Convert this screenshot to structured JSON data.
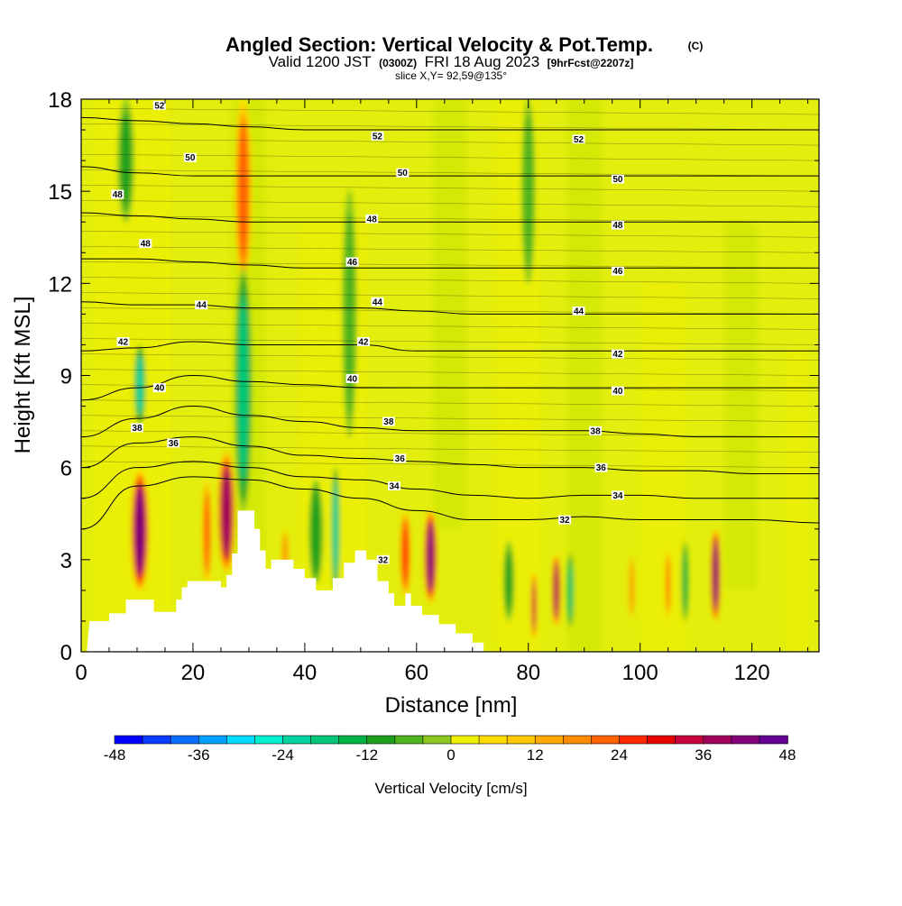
{
  "title": {
    "main": "Angled Section: Vertical Velocity & Pot.Temp.",
    "unit_tag": "(C)",
    "valid_prefix": "Valid 1200 JST",
    "valid_utc": "(0300Z)",
    "valid_date": "FRI 18 Aug 2023",
    "forecast_tag": "[9hrFcst@2207z]",
    "slice": "slice X,Y= 92,59@135°"
  },
  "chart_data": {
    "type": "heatmap",
    "title": "Angled Section: Vertical Velocity & Pot.Temp.",
    "xlabel": "Distance [nm]",
    "ylabel": "Height [Kft MSL]",
    "xlim": [
      0,
      132
    ],
    "ylim": [
      0,
      18
    ],
    "x_ticks": [
      "0",
      "20",
      "40",
      "60",
      "80",
      "100",
      "120"
    ],
    "y_ticks": [
      "0",
      "3",
      "6",
      "9",
      "12",
      "15",
      "18"
    ],
    "colorbar": {
      "label": "Vertical Velocity [cm/s]",
      "tick_labels": [
        "-48",
        "-36",
        "-24",
        "-12",
        "0",
        "12",
        "24",
        "36",
        "48"
      ],
      "levels": [
        -48,
        -44,
        -40,
        -36,
        -32,
        -28,
        -24,
        -20,
        -16,
        -12,
        -8,
        -4,
        0,
        4,
        8,
        12,
        16,
        20,
        24,
        28,
        32,
        36,
        40,
        44,
        48
      ],
      "colors": [
        "#0000ff",
        "#0a3cff",
        "#0a6eff",
        "#00a0ff",
        "#00dcff",
        "#00f0d2",
        "#00d2a0",
        "#00c878",
        "#00b446",
        "#1ea01e",
        "#50b41e",
        "#8cc81e",
        "#c8e600",
        "#f0f000",
        "#ffdc00",
        "#ffc800",
        "#ffaa00",
        "#ff8c00",
        "#ff6400",
        "#ff2800",
        "#e60000",
        "#c8003c",
        "#a0005a",
        "#820078",
        "#640096"
      ]
    },
    "pot_temp_contours": [
      {
        "value": 32,
        "label": "32",
        "heights": [
          [
            0,
            4.0
          ],
          [
            10,
            5.4
          ],
          [
            20,
            5.7
          ],
          [
            30,
            5.6
          ],
          [
            40,
            5.3
          ],
          [
            50,
            5.0
          ],
          [
            60,
            4.6
          ],
          [
            70,
            4.3
          ],
          [
            80,
            4.3
          ],
          [
            90,
            4.4
          ],
          [
            100,
            4.3
          ],
          [
            110,
            4.3
          ],
          [
            120,
            4.3
          ],
          [
            132,
            4.2
          ]
        ]
      },
      {
        "value": 34,
        "label": "34",
        "heights": [
          [
            0,
            5.0
          ],
          [
            10,
            6.0
          ],
          [
            20,
            6.2
          ],
          [
            30,
            6.0
          ],
          [
            40,
            5.7
          ],
          [
            50,
            5.6
          ],
          [
            60,
            5.3
          ],
          [
            70,
            5.1
          ],
          [
            80,
            5.0
          ],
          [
            90,
            5.1
          ],
          [
            100,
            5.1
          ],
          [
            110,
            5.0
          ],
          [
            120,
            5.0
          ],
          [
            132,
            5.0
          ]
        ]
      },
      {
        "value": 36,
        "label": "36",
        "heights": [
          [
            0,
            6.0
          ],
          [
            10,
            6.8
          ],
          [
            20,
            7.0
          ],
          [
            30,
            6.7
          ],
          [
            40,
            6.4
          ],
          [
            50,
            6.3
          ],
          [
            60,
            6.2
          ],
          [
            70,
            6.1
          ],
          [
            80,
            6.0
          ],
          [
            90,
            6.0
          ],
          [
            100,
            5.9
          ],
          [
            110,
            5.9
          ],
          [
            120,
            5.8
          ],
          [
            132,
            5.8
          ]
        ]
      },
      {
        "value": 38,
        "label": "38",
        "heights": [
          [
            0,
            7.0
          ],
          [
            10,
            7.6
          ],
          [
            20,
            8.0
          ],
          [
            30,
            7.7
          ],
          [
            40,
            7.5
          ],
          [
            50,
            7.3
          ],
          [
            60,
            7.2
          ],
          [
            70,
            7.2
          ],
          [
            80,
            7.2
          ],
          [
            90,
            7.2
          ],
          [
            100,
            7.1
          ],
          [
            110,
            7.0
          ],
          [
            120,
            7.0
          ],
          [
            132,
            7.0
          ]
        ]
      },
      {
        "value": 40,
        "label": "40",
        "heights": [
          [
            0,
            8.2
          ],
          [
            10,
            8.6
          ],
          [
            20,
            9.0
          ],
          [
            30,
            8.8
          ],
          [
            40,
            8.7
          ],
          [
            50,
            8.6
          ],
          [
            60,
            8.6
          ],
          [
            70,
            8.6
          ],
          [
            80,
            8.6
          ],
          [
            90,
            8.6
          ],
          [
            100,
            8.6
          ],
          [
            110,
            8.6
          ],
          [
            120,
            8.6
          ],
          [
            132,
            8.6
          ]
        ]
      },
      {
        "value": 42,
        "label": "42",
        "heights": [
          [
            0,
            9.8
          ],
          [
            10,
            9.9
          ],
          [
            20,
            10.1
          ],
          [
            30,
            10.0
          ],
          [
            40,
            10.0
          ],
          [
            50,
            10.0
          ],
          [
            60,
            9.8
          ],
          [
            70,
            9.8
          ],
          [
            80,
            9.8
          ],
          [
            90,
            9.8
          ],
          [
            100,
            9.8
          ],
          [
            110,
            9.8
          ],
          [
            120,
            9.8
          ],
          [
            132,
            9.8
          ]
        ]
      },
      {
        "value": 44,
        "label": "44",
        "heights": [
          [
            0,
            11.4
          ],
          [
            10,
            11.3
          ],
          [
            20,
            11.3
          ],
          [
            30,
            11.2
          ],
          [
            40,
            11.2
          ],
          [
            50,
            11.2
          ],
          [
            60,
            11.1
          ],
          [
            70,
            11.0
          ],
          [
            80,
            11.0
          ],
          [
            90,
            11.0
          ],
          [
            100,
            11.0
          ],
          [
            110,
            11.0
          ],
          [
            120,
            11.0
          ],
          [
            132,
            11.0
          ]
        ]
      },
      {
        "value": 46,
        "label": "46",
        "heights": [
          [
            0,
            12.8
          ],
          [
            10,
            12.8
          ],
          [
            20,
            12.7
          ],
          [
            30,
            12.6
          ],
          [
            40,
            12.5
          ],
          [
            50,
            12.5
          ],
          [
            60,
            12.5
          ],
          [
            70,
            12.5
          ],
          [
            80,
            12.5
          ],
          [
            90,
            12.5
          ],
          [
            100,
            12.5
          ],
          [
            110,
            12.5
          ],
          [
            120,
            12.5
          ],
          [
            132,
            12.5
          ]
        ]
      },
      {
        "value": 48,
        "label": "48",
        "heights": [
          [
            0,
            14.3
          ],
          [
            10,
            14.2
          ],
          [
            20,
            14.1
          ],
          [
            30,
            14.0
          ],
          [
            40,
            14.0
          ],
          [
            50,
            14.0
          ],
          [
            60,
            14.0
          ],
          [
            70,
            14.0
          ],
          [
            80,
            14.0
          ],
          [
            90,
            14.0
          ],
          [
            100,
            14.0
          ],
          [
            110,
            14.0
          ],
          [
            120,
            14.0
          ],
          [
            132,
            14.0
          ]
        ]
      },
      {
        "value": 50,
        "label": "50",
        "heights": [
          [
            0,
            15.8
          ],
          [
            10,
            15.6
          ],
          [
            20,
            15.5
          ],
          [
            30,
            15.5
          ],
          [
            40,
            15.5
          ],
          [
            50,
            15.5
          ],
          [
            60,
            15.5
          ],
          [
            70,
            15.5
          ],
          [
            80,
            15.5
          ],
          [
            90,
            15.5
          ],
          [
            100,
            15.5
          ],
          [
            110,
            15.5
          ],
          [
            120,
            15.5
          ],
          [
            132,
            15.5
          ]
        ]
      },
      {
        "value": 52,
        "label": "52",
        "heights": [
          [
            0,
            17.4
          ],
          [
            10,
            17.3
          ],
          [
            20,
            17.2
          ],
          [
            30,
            17.1
          ],
          [
            40,
            17.0
          ],
          [
            50,
            17.0
          ],
          [
            60,
            17.0
          ],
          [
            70,
            17.0
          ],
          [
            80,
            17.0
          ],
          [
            90,
            17.0
          ],
          [
            100,
            17.0
          ],
          [
            110,
            17.0
          ],
          [
            120,
            17.0
          ],
          [
            132,
            17.0
          ]
        ]
      }
    ],
    "contour_labels": [
      {
        "text": "52",
        "x": 14,
        "y": 17.8
      },
      {
        "text": "52",
        "x": 53,
        "y": 16.8
      },
      {
        "text": "52",
        "x": 89,
        "y": 16.7
      },
      {
        "text": "50",
        "x": 19.5,
        "y": 16.1
      },
      {
        "text": "50",
        "x": 57.5,
        "y": 15.6
      },
      {
        "text": "50",
        "x": 96,
        "y": 15.4
      },
      {
        "text": "48",
        "x": 6.5,
        "y": 14.9
      },
      {
        "text": "48",
        "x": 52,
        "y": 14.1
      },
      {
        "text": "48",
        "x": 96,
        "y": 13.9
      },
      {
        "text": "48",
        "x": 11.5,
        "y": 13.3
      },
      {
        "text": "46",
        "x": 48.5,
        "y": 12.7
      },
      {
        "text": "46",
        "x": 96,
        "y": 12.4
      },
      {
        "text": "44",
        "x": 21.5,
        "y": 11.3
      },
      {
        "text": "44",
        "x": 53,
        "y": 11.4
      },
      {
        "text": "44",
        "x": 89,
        "y": 11.1
      },
      {
        "text": "42",
        "x": 7.5,
        "y": 10.1
      },
      {
        "text": "42",
        "x": 50.5,
        "y": 10.1
      },
      {
        "text": "42",
        "x": 96,
        "y": 9.7
      },
      {
        "text": "40",
        "x": 14,
        "y": 8.6
      },
      {
        "text": "40",
        "x": 48.5,
        "y": 8.9
      },
      {
        "text": "40",
        "x": 96,
        "y": 8.5
      },
      {
        "text": "38",
        "x": 10,
        "y": 7.3
      },
      {
        "text": "38",
        "x": 55,
        "y": 7.5
      },
      {
        "text": "38",
        "x": 92,
        "y": 7.2
      },
      {
        "text": "36",
        "x": 16.5,
        "y": 6.8
      },
      {
        "text": "36",
        "x": 57,
        "y": 6.3
      },
      {
        "text": "36",
        "x": 93,
        "y": 6.0
      },
      {
        "text": "34",
        "x": 56,
        "y": 5.4
      },
      {
        "text": "34",
        "x": 96,
        "y": 5.1
      },
      {
        "text": "32",
        "x": 86.5,
        "y": 4.3
      },
      {
        "text": "32",
        "x": 54,
        "y": 3.0
      }
    ],
    "terrain_kft": [
      [
        0,
        0.0
      ],
      [
        1,
        0.0
      ],
      [
        1.5,
        1.0
      ],
      [
        5,
        1.0
      ],
      [
        5,
        1.25
      ],
      [
        8,
        1.25
      ],
      [
        8,
        1.7
      ],
      [
        13,
        1.7
      ],
      [
        13,
        1.3
      ],
      [
        17,
        1.3
      ],
      [
        17,
        1.7
      ],
      [
        18,
        1.7
      ],
      [
        18,
        2.1
      ],
      [
        19,
        2.1
      ],
      [
        19,
        2.3
      ],
      [
        25,
        2.3
      ],
      [
        25,
        2.1
      ],
      [
        26,
        2.1
      ],
      [
        26,
        2.5
      ],
      [
        27,
        2.5
      ],
      [
        27,
        3.2
      ],
      [
        28,
        3.2
      ],
      [
        28,
        4.6
      ],
      [
        31,
        4.6
      ],
      [
        31,
        4.0
      ],
      [
        32,
        4.0
      ],
      [
        32,
        3.3
      ],
      [
        33,
        3.3
      ],
      [
        33,
        2.7
      ],
      [
        34,
        2.7
      ],
      [
        34,
        3.0
      ],
      [
        38,
        3.0
      ],
      [
        38,
        2.7
      ],
      [
        40,
        2.7
      ],
      [
        40,
        2.4
      ],
      [
        42,
        2.4
      ],
      [
        42,
        2.0
      ],
      [
        45,
        2.0
      ],
      [
        45,
        2.4
      ],
      [
        47,
        2.4
      ],
      [
        47,
        2.9
      ],
      [
        49,
        2.9
      ],
      [
        49,
        3.3
      ],
      [
        51,
        3.3
      ],
      [
        51,
        3.0
      ],
      [
        53,
        3.0
      ],
      [
        53,
        2.3
      ],
      [
        55,
        2.3
      ],
      [
        55,
        1.9
      ],
      [
        56,
        1.9
      ],
      [
        56,
        1.5
      ],
      [
        58,
        1.5
      ],
      [
        58,
        1.9
      ],
      [
        59,
        1.9
      ],
      [
        59,
        1.5
      ],
      [
        61,
        1.5
      ],
      [
        61,
        1.2
      ],
      [
        64,
        1.2
      ],
      [
        64,
        0.9
      ],
      [
        67,
        0.9
      ],
      [
        67,
        0.6
      ],
      [
        70,
        0.6
      ],
      [
        70,
        0.3
      ],
      [
        72,
        0.3
      ],
      [
        72,
        0.0
      ],
      [
        132,
        0.0
      ]
    ],
    "updrafts": [
      {
        "x": 10.5,
        "ybot": 2.0,
        "ytop": 5.9,
        "w": 3.2,
        "v": 44
      },
      {
        "x": 26.0,
        "ybot": 2.6,
        "ytop": 6.5,
        "w": 3.0,
        "v": 40
      },
      {
        "x": 22.5,
        "ybot": 2.2,
        "ytop": 5.6,
        "w": 1.6,
        "v": 24
      },
      {
        "x": 62.5,
        "ybot": 1.6,
        "ytop": 4.6,
        "w": 2.2,
        "v": 44
      },
      {
        "x": 58.0,
        "ybot": 1.8,
        "ytop": 4.6,
        "w": 1.8,
        "v": 28
      },
      {
        "x": 36.5,
        "ybot": 2.4,
        "ytop": 4.0,
        "w": 1.2,
        "v": 20
      },
      {
        "x": 85.0,
        "ybot": 0.8,
        "ytop": 3.2,
        "w": 1.4,
        "v": 38
      },
      {
        "x": 81.0,
        "ybot": 0.4,
        "ytop": 2.6,
        "w": 1.0,
        "v": 36
      },
      {
        "x": 113.5,
        "ybot": 1.0,
        "ytop": 4.0,
        "w": 1.6,
        "v": 44
      },
      {
        "x": 105.0,
        "ybot": 1.0,
        "ytop": 3.4,
        "w": 1.0,
        "v": 22
      },
      {
        "x": 98.5,
        "ybot": 1.0,
        "ytop": 3.2,
        "w": 0.9,
        "v": 20
      },
      {
        "x": 29.0,
        "ybot": 12.0,
        "ytop": 18.0,
        "w": 3.0,
        "v": 24
      }
    ],
    "downdrafts": [
      {
        "x": 29.0,
        "ybot": 8.8,
        "ytop": 11.8,
        "w": 1.4,
        "v": -44
      },
      {
        "x": 29.0,
        "ybot": 4.6,
        "ytop": 12.5,
        "w": 3.0,
        "v": -22
      },
      {
        "x": 10.5,
        "ybot": 7.4,
        "ytop": 10.0,
        "w": 2.0,
        "v": -24
      },
      {
        "x": 8.0,
        "ybot": 14.0,
        "ytop": 18.0,
        "w": 3.0,
        "v": -12
      },
      {
        "x": 45.5,
        "ybot": 2.0,
        "ytop": 6.0,
        "w": 1.4,
        "v": -26
      },
      {
        "x": 42.0,
        "ybot": 2.2,
        "ytop": 5.6,
        "w": 2.5,
        "v": -14
      },
      {
        "x": 87.5,
        "ybot": 0.8,
        "ytop": 3.2,
        "w": 1.2,
        "v": -22
      },
      {
        "x": 76.5,
        "ybot": 1.0,
        "ytop": 3.6,
        "w": 2.0,
        "v": -12
      },
      {
        "x": 108.0,
        "ybot": 1.0,
        "ytop": 3.6,
        "w": 1.2,
        "v": -18
      },
      {
        "x": 48.0,
        "ybot": 7.0,
        "ytop": 15.0,
        "w": 2.6,
        "v": -10
      },
      {
        "x": 80.0,
        "ybot": 12.0,
        "ytop": 18.0,
        "w": 2.5,
        "v": -10
      }
    ]
  }
}
